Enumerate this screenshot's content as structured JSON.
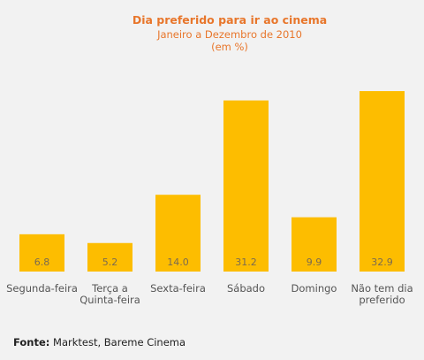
{
  "chart_data": {
    "type": "bar",
    "title": "Dia preferido para ir ao cinema",
    "subtitle_lines": [
      "Janeiro a Dezembro de 2010",
      "(em %)"
    ],
    "categories": [
      [
        "Segunda-feira"
      ],
      [
        "Terça a",
        "Quinta-feira"
      ],
      [
        "Sexta-feira"
      ],
      [
        "Sábado"
      ],
      [
        "Domingo"
      ],
      [
        "Não tem dia",
        "preferido"
      ]
    ],
    "values": [
      6.8,
      5.2,
      14.0,
      31.2,
      9.9,
      32.9
    ],
    "value_labels": [
      "6.8",
      "5.2",
      "14.0",
      "31.2",
      "9.9",
      "32.9"
    ],
    "bar_color": "#fdbd00",
    "title_color": "#e8762b",
    "grid": false
  },
  "source": {
    "label": "Fonte:",
    "text": " Marktest, Bareme Cinema"
  }
}
